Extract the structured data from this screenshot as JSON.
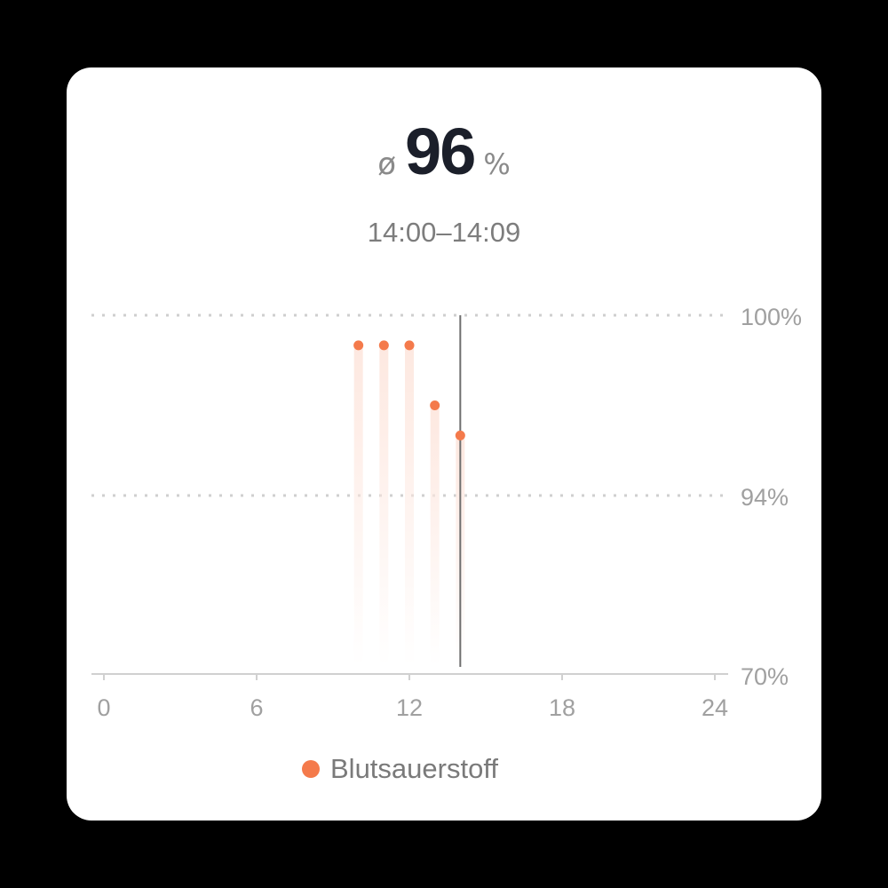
{
  "header": {
    "avg_symbol": "ø",
    "value": "96",
    "unit": "%",
    "time_range": "14:00–14:09"
  },
  "chart_data": {
    "type": "scatter",
    "x": [
      10,
      11,
      12,
      13,
      14
    ],
    "y": [
      99,
      99,
      99,
      97,
      96
    ],
    "xlim": [
      0,
      24
    ],
    "x_ticks": [
      "0",
      "6",
      "12",
      "18",
      "24"
    ],
    "y_ticks": [
      "100%",
      "94%",
      "70%"
    ],
    "y_tick_values": [
      100,
      94,
      70
    ],
    "y_scale": "piecewise (70–94 compressed)",
    "grid": "dotted horizontal at 100% and 94%",
    "cursor_x": 14,
    "series_name": "Blutsauerstoff",
    "legend": "bottom-center",
    "colors": {
      "point": "#f47a4b",
      "stem": "#fde8e0",
      "cursor": "#6e6e6e",
      "grid": "#cfcfcf",
      "axis": "#d0d0d0",
      "tick_text": "#a0a0a0"
    }
  }
}
